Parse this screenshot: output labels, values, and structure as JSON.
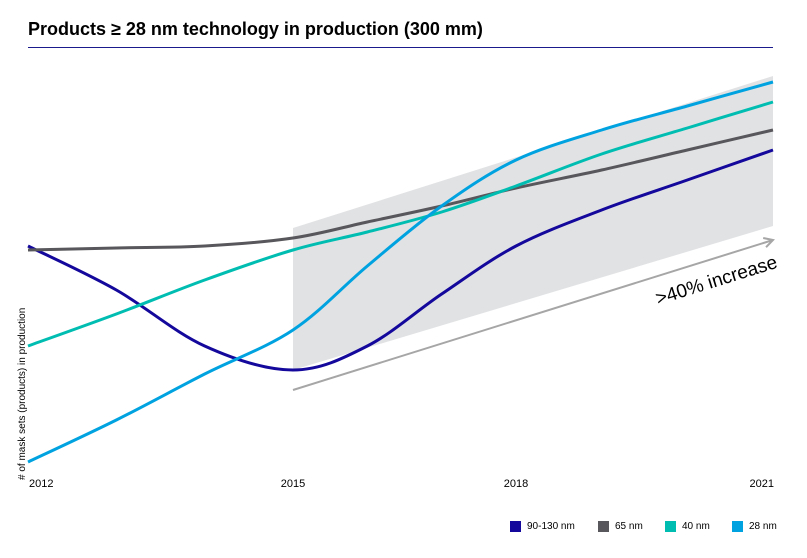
{
  "chart_data": {
    "type": "line",
    "title": "Products ≥ 28 nm technology in production (300 mm)",
    "xlabel": "",
    "ylabel": "# of mask sets (products) in production",
    "x": [
      2012,
      2013,
      2014,
      2015,
      2016,
      2017,
      2018,
      2019,
      2020,
      2021
    ],
    "xticks": [
      "2012",
      "2015",
      "2018",
      "2021"
    ],
    "ylim": [
      0,
      100
    ],
    "grid": false,
    "legend_position": "bottom-right",
    "series": [
      {
        "name": "90-130 nm",
        "color": "#13089b",
        "values": [
          56,
          45,
          31,
          25,
          31,
          44,
          56,
          65,
          72.5,
          80
        ]
      },
      {
        "name": "65 nm",
        "color": "#58585c",
        "values": [
          55,
          55.5,
          56,
          58,
          62,
          66,
          70.5,
          75,
          80,
          85
        ]
      },
      {
        "name": "40 nm",
        "color": "#00bdb2",
        "values": [
          31,
          39,
          47.5,
          55,
          59.5,
          64.5,
          71,
          79,
          85.5,
          92
        ]
      },
      {
        "name": "28 nm",
        "color": "#00a3e0",
        "values": [
          2,
          12.5,
          24,
          35,
          51,
          66,
          77.5,
          85,
          91,
          97
        ]
      }
    ],
    "band": {
      "x": [
        2015,
        2021
      ],
      "upper": [
        60.5,
        98.5
      ],
      "lower": [
        25,
        61
      ],
      "color": "#e1e2e4"
    },
    "annotation": {
      "text": ">40% increase",
      "arrow_from": [
        2015,
        20
      ],
      "arrow_to": [
        2021,
        57.5
      ],
      "color": "#a6a6a6"
    }
  }
}
